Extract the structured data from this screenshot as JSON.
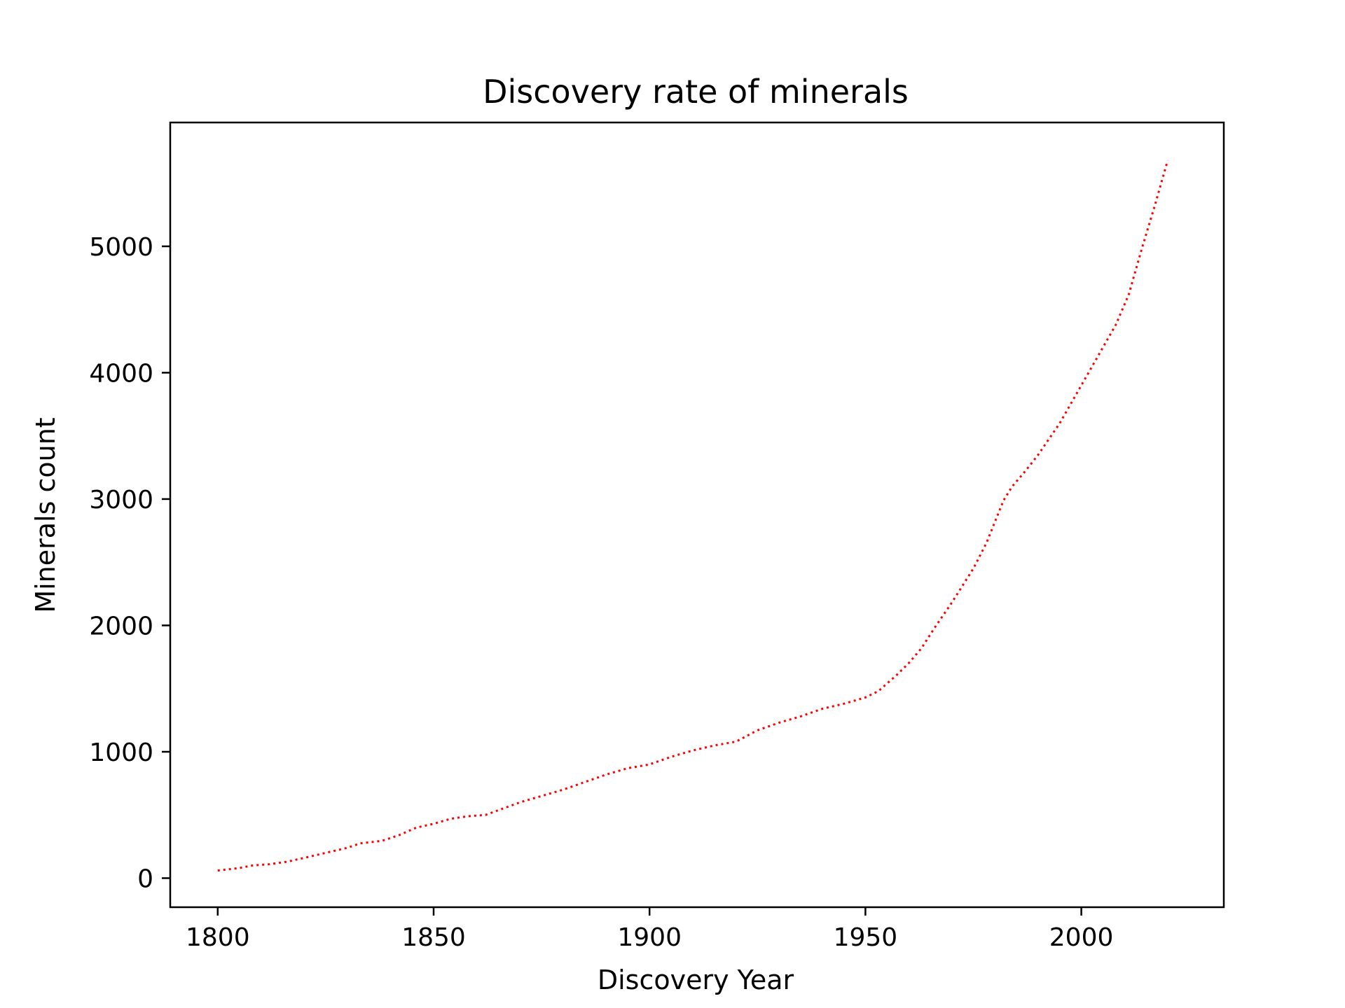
{
  "chart_data": {
    "type": "line",
    "title": "Discovery rate of minerals",
    "xlabel": "Discovery Year",
    "ylabel": "Minerals count",
    "xlim": [
      1789,
      2033
    ],
    "ylim": [
      -230,
      5980
    ],
    "xticks": [
      1800,
      1850,
      1900,
      1950,
      2000
    ],
    "yticks": [
      0,
      1000,
      2000,
      3000,
      4000,
      5000
    ],
    "xtick_labels": [
      "1800",
      "1850",
      "1900",
      "1950",
      "2000"
    ],
    "ytick_labels": [
      "0",
      "1000",
      "2000",
      "3000",
      "4000",
      "5000"
    ],
    "grid": false,
    "legend": null,
    "line_style": "dotted",
    "colors": {
      "line": "#ff0000",
      "axes": "#000000",
      "background": "#ffffff"
    },
    "series": [
      {
        "x": [
          1800,
          1805,
          1808,
          1812,
          1816,
          1820,
          1825,
          1830,
          1833,
          1838,
          1842,
          1846,
          1850,
          1854,
          1858,
          1862,
          1866,
          1870,
          1875,
          1880,
          1885,
          1890,
          1895,
          1900,
          1905,
          1910,
          1915,
          1920,
          1925,
          1930,
          1935,
          1940,
          1945,
          1950,
          1953,
          1957,
          1960,
          1963,
          1966,
          1970,
          1975,
          1978,
          1980,
          1982,
          1984,
          1987,
          1990,
          1995,
          2000,
          2005,
          2008,
          2011,
          2014,
          2017,
          2020
        ],
        "y": [
          60,
          80,
          100,
          110,
          130,
          160,
          200,
          240,
          275,
          295,
          340,
          400,
          430,
          470,
          490,
          500,
          550,
          600,
          650,
          700,
          760,
          820,
          870,
          900,
          960,
          1010,
          1050,
          1080,
          1170,
          1230,
          1280,
          1340,
          1380,
          1430,
          1480,
          1600,
          1700,
          1820,
          1980,
          2180,
          2450,
          2650,
          2820,
          2990,
          3100,
          3220,
          3350,
          3600,
          3900,
          4200,
          4380,
          4620,
          4980,
          5320,
          5680
        ]
      }
    ]
  }
}
